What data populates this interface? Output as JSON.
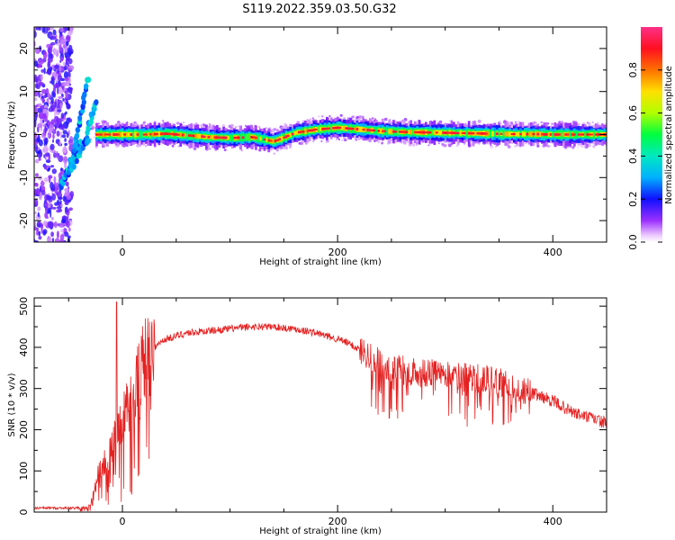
{
  "title": "S119.2022.359.03.50.G32",
  "chart_data": [
    {
      "type": "heatmap",
      "xlabel": "Height of straight line (km)",
      "ylabel": "Frequency (Hz)",
      "xlim": [
        -82,
        450
      ],
      "ylim": [
        -25,
        25
      ],
      "x_ticks": [
        0,
        200,
        400
      ],
      "y_ticks": [
        -20,
        -10,
        0,
        10,
        20
      ],
      "colorbar": {
        "label": "Normalized spectral amplitude",
        "range": [
          0,
          1
        ],
        "ticks": [
          "0.0",
          "0.2",
          "0.4",
          "0.6",
          "0.8"
        ],
        "tick_values": [
          0,
          0.2,
          0.4,
          0.6,
          0.8
        ]
      },
      "ridge": {
        "x": [
          -20,
          0,
          20,
          40,
          60,
          80,
          100,
          120,
          140,
          160,
          180,
          200,
          220,
          240,
          260,
          280,
          300,
          320,
          340,
          360,
          380,
          400,
          420,
          450
        ],
        "y": [
          0,
          0,
          0,
          0.2,
          -0.2,
          -0.6,
          -0.8,
          -0.6,
          -1.6,
          0.4,
          1.2,
          1.6,
          1.2,
          0.8,
          0.6,
          0.5,
          0.4,
          0.3,
          0.2,
          0.1,
          0.1,
          0.0,
          0.0,
          0.0
        ]
      }
    },
    {
      "type": "line",
      "xlabel": "Height of straight line (km)",
      "ylabel": "SNR (10 * v/v)",
      "xlim": [
        -82,
        450
      ],
      "ylim": [
        0,
        520
      ],
      "x_ticks": [
        0,
        200,
        400
      ],
      "y_ticks": [
        0,
        100,
        200,
        300,
        400,
        500
      ],
      "color": "#e32222",
      "envelope": {
        "x": [
          -82,
          -70,
          -60,
          -50,
          -40,
          -35,
          -30,
          -25,
          -20,
          -15,
          -10,
          -5,
          0,
          5,
          10,
          15,
          20,
          30,
          40,
          60,
          80,
          100,
          120,
          140,
          160,
          180,
          200,
          210,
          220,
          230,
          240,
          250,
          260,
          270,
          280,
          300,
          320,
          340,
          360,
          380,
          400,
          420,
          440,
          450
        ],
        "y": [
          10,
          10,
          10,
          10,
          10,
          12,
          15,
          70,
          110,
          130,
          150,
          200,
          220,
          260,
          300,
          340,
          370,
          400,
          420,
          435,
          440,
          445,
          450,
          450,
          445,
          435,
          420,
          410,
          395,
          380,
          360,
          340,
          350,
          340,
          335,
          340,
          330,
          320,
          310,
          290,
          270,
          240,
          225,
          215
        ]
      }
    }
  ]
}
